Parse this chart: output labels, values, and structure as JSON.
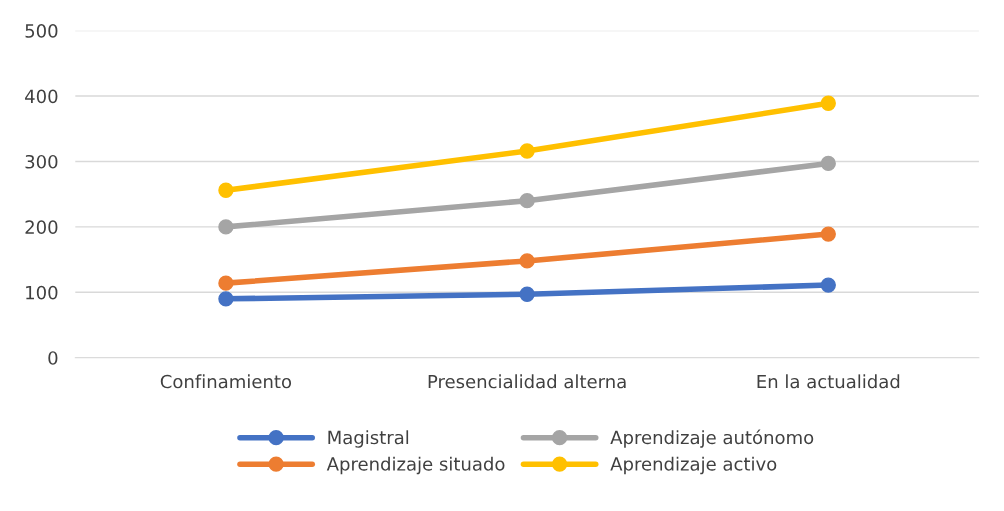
{
  "chart_data": {
    "type": "line",
    "categories": [
      "Confinamiento",
      "Presencialidad alterna",
      "En la actualidad"
    ],
    "series": [
      {
        "name": "Magistral",
        "color": "#4472c4",
        "values": [
          90,
          97,
          111
        ]
      },
      {
        "name": "Aprendizaje situado",
        "color": "#ed7d31",
        "values": [
          114,
          148,
          189
        ]
      },
      {
        "name": "Aprendizaje autónomo",
        "color": "#a5a5a5",
        "values": [
          200,
          240,
          297
        ]
      },
      {
        "name": "Aprendizaje activo",
        "color": "#ffc000",
        "values": [
          256,
          316,
          389
        ]
      }
    ],
    "ylim": [
      0,
      500
    ],
    "yticks": [
      0,
      100,
      200,
      300,
      400,
      500
    ],
    "grid": "y",
    "legend": "bottom",
    "marker": "circle",
    "line_style": "solid"
  }
}
